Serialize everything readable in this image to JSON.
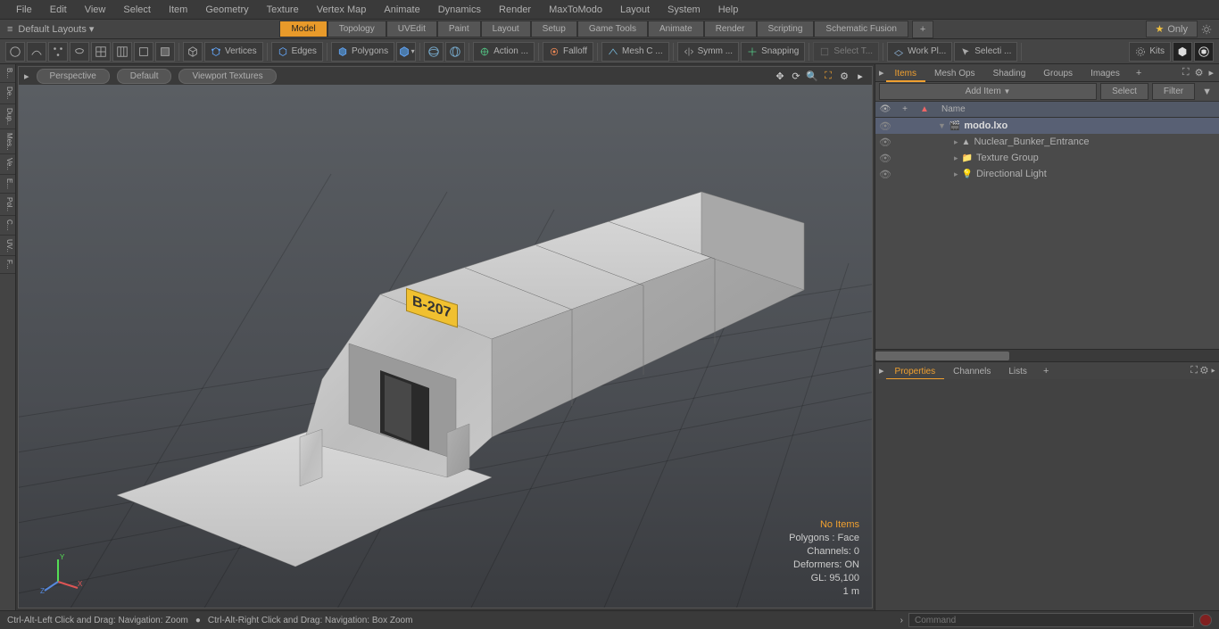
{
  "menu": [
    "File",
    "Edit",
    "View",
    "Select",
    "Item",
    "Geometry",
    "Texture",
    "Vertex Map",
    "Animate",
    "Dynamics",
    "Render",
    "MaxToModo",
    "Layout",
    "System",
    "Help"
  ],
  "layout_dropdown": "Default Layouts ▾",
  "layout_tabs": [
    "Model",
    "Topology",
    "UVEdit",
    "Paint",
    "Layout",
    "Setup",
    "Game Tools",
    "Animate",
    "Render",
    "Scripting",
    "Schematic Fusion"
  ],
  "active_layout_tab": "Model",
  "only_label": "Only",
  "toolbar_buttons": {
    "vertices": "Vertices",
    "edges": "Edges",
    "polygons": "Polygons",
    "action": "Action  ...",
    "falloff": "Falloff",
    "meshc": "Mesh C ...",
    "symm": "Symm ...",
    "snapping": "Snapping",
    "selectt": "Select T...",
    "workpl": "Work Pl...",
    "selecti": "Selecti ...",
    "kits": "Kits"
  },
  "viewport": {
    "dropdowns": [
      "Perspective",
      "Default",
      "Viewport Textures"
    ],
    "sign_text": "B-207",
    "info": {
      "noitems": "No Items",
      "polygons": "Polygons : Face",
      "channels": "Channels: 0",
      "deformers": "Deformers: ON",
      "gl": "GL: 95,100",
      "scale": "1 m"
    }
  },
  "leftstrip": [
    "B...",
    "De..",
    "Dup..",
    "Mes..",
    "Ve..",
    "E...",
    "Pol..",
    "C...",
    "UV..",
    "F..."
  ],
  "items_panel": {
    "tabs": [
      "Items",
      "Mesh Ops",
      "Shading",
      "Groups",
      "Images"
    ],
    "active_tab": "Items",
    "add_item": "Add Item",
    "select": "Select",
    "filter": "Filter",
    "name_header": "Name",
    "tree": [
      {
        "label": "modo.lxo",
        "indent": 0,
        "bold": true,
        "icon": "scene"
      },
      {
        "label": "Nuclear_Bunker_Entrance",
        "indent": 1,
        "icon": "mesh"
      },
      {
        "label": "Texture Group",
        "indent": 1,
        "icon": "group"
      },
      {
        "label": "Directional Light",
        "indent": 1,
        "icon": "light"
      }
    ]
  },
  "props_panel": {
    "tabs": [
      "Properties",
      "Channels",
      "Lists"
    ],
    "active_tab": "Properties"
  },
  "statusbar": {
    "left1": "Ctrl-Alt-Left Click and Drag: Navigation: Zoom",
    "left2": "Ctrl-Alt-Right Click and Drag: Navigation: Box Zoom",
    "cmd_placeholder": "Command"
  },
  "colors": {
    "accent": "#f0a030",
    "sign_bg": "#f0c030"
  }
}
